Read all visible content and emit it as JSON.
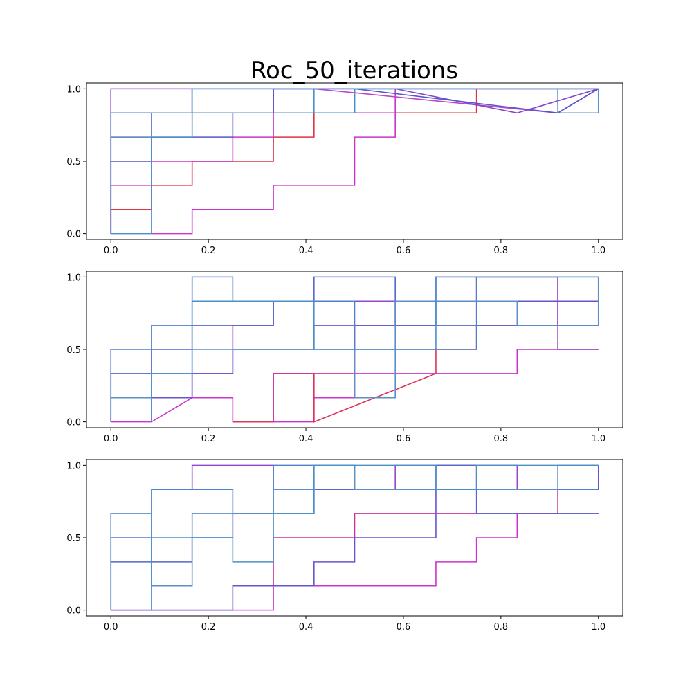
{
  "title": "Roc_50_iterations",
  "chart_data": [
    {
      "type": "line",
      "title": "",
      "xlabel": "",
      "ylabel": "",
      "xlim": [
        -0.05,
        1.05
      ],
      "ylim": [
        -0.04,
        1.04
      ],
      "xticks": [
        0.0,
        0.2,
        0.4,
        0.6,
        0.8,
        1.0
      ],
      "xtick_labels": [
        "0.0",
        "0.2",
        "0.4",
        "0.6",
        "0.8",
        "1.0"
      ],
      "yticks": [
        0.0,
        0.5,
        1.0
      ],
      "ytick_labels": [
        "0.0",
        "0.5",
        "1.0"
      ],
      "grid": false,
      "series": [
        {
          "color": "#dd3344",
          "x": [
            0,
            0,
            0.0833,
            0.0833,
            0.1667,
            0.1667,
            0.3333,
            0.3333,
            0.4167,
            0.4167,
            0.5,
            0.5,
            0.75,
            0.75,
            1.0
          ],
          "y": [
            0,
            0.1667,
            0.1667,
            0.3333,
            0.3333,
            0.5,
            0.5,
            0.6667,
            0.6667,
            0.8333,
            0.8333,
            0.8333,
            0.8333,
            1.0,
            1.0
          ]
        },
        {
          "color": "#cc33cc",
          "x": [
            0,
            0,
            0.0833,
            0.0833,
            0.25,
            0.25,
            0.3333,
            0.3333,
            0.5833,
            0.5833,
            0.75,
            0.75,
            1.0
          ],
          "y": [
            0,
            0.3333,
            0.3333,
            0.5,
            0.5,
            0.6667,
            0.6667,
            0.8333,
            0.8333,
            1.0,
            1.0,
            1.0,
            1.0
          ]
        },
        {
          "color": "#bb44cc",
          "x": [
            0,
            0,
            0.0833,
            0.0833,
            0.1667,
            0.1667,
            0.3333,
            0.3333,
            0.4167,
            0.4167,
            0.9167,
            1.0
          ],
          "y": [
            0,
            0.6667,
            0.6667,
            0.8333,
            0.8333,
            0.8333,
            0.8333,
            1.0,
            1.0,
            1.0,
            0.8333,
            1.0
          ]
        },
        {
          "color": "#8844cc",
          "x": [
            0,
            0,
            0.1667,
            0.1667,
            0.25,
            0.25,
            0.3333,
            0.3333,
            0.5833,
            0.5833,
            0.8333,
            1.0
          ],
          "y": [
            0,
            1.0,
            1.0,
            0.8333,
            0.8333,
            0.8333,
            0.8333,
            1.0,
            1.0,
            1.0,
            0.8333,
            1.0
          ]
        },
        {
          "color": "#5555cc",
          "x": [
            0,
            0,
            0.0833,
            0.0833,
            0.25,
            0.25,
            0.3333,
            0.3333,
            0.5,
            0.5,
            0.9167,
            1.0
          ],
          "y": [
            0,
            0.5,
            0.5,
            0.6667,
            0.6667,
            0.8333,
            0.8333,
            1.0,
            1.0,
            1.0,
            0.8333,
            1.0
          ]
        },
        {
          "color": "#4f7fcc",
          "x": [
            0,
            0,
            0.0833,
            0.0833,
            0.1667,
            0.1667,
            0.3333,
            0.3333,
            0.5833,
            0.5833,
            1.0
          ],
          "y": [
            0,
            0.8333,
            0.8333,
            0.8333,
            0.8333,
            1.0,
            1.0,
            1.0,
            1.0,
            1.0,
            1.0
          ]
        },
        {
          "color": "#5b8fc7",
          "x": [
            0,
            0,
            0.0833,
            0.0833,
            0.1667,
            0.1667,
            0.5,
            0.5,
            0.9167,
            0.9167,
            1.0,
            1.0
          ],
          "y": [
            0,
            0.6667,
            0.6667,
            0.8333,
            0.8333,
            0.8333,
            0.8333,
            1.0,
            1.0,
            0.8333,
            0.8333,
            1.0
          ]
        },
        {
          "color": "#4a90c8",
          "x": [
            0,
            0.0833,
            0.0833,
            0.0833,
            0.0833,
            0.1667,
            0.1667,
            0.4167,
            0.4167,
            0.5,
            0.5,
            1.0
          ],
          "y": [
            0,
            0,
            0.3333,
            0.3333,
            0.6667,
            0.6667,
            1.0,
            1.0,
            0.8333,
            0.8333,
            1.0,
            1.0
          ]
        },
        {
          "color": "#cc33cc",
          "x": [
            0.0833,
            0.1667,
            0.1667,
            0.3333,
            0.3333,
            0.5,
            0.5,
            0.5833,
            0.5833
          ],
          "y": [
            0,
            0,
            0.1667,
            0.1667,
            0.3333,
            0.3333,
            0.6667,
            0.6667,
            0.8333
          ]
        }
      ]
    },
    {
      "type": "line",
      "title": "",
      "xlabel": "",
      "ylabel": "",
      "xlim": [
        -0.05,
        1.05
      ],
      "ylim": [
        -0.04,
        1.04
      ],
      "xticks": [
        0.0,
        0.2,
        0.4,
        0.6,
        0.8,
        1.0
      ],
      "xtick_labels": [
        "0.0",
        "0.2",
        "0.4",
        "0.6",
        "0.8",
        "1.0"
      ],
      "yticks": [
        0.0,
        0.5,
        1.0
      ],
      "ytick_labels": [
        "0.0",
        "0.5",
        "1.0"
      ],
      "grid": false,
      "series": [
        {
          "color": "#cc33cc",
          "x": [
            0,
            0.0833,
            0.1667,
            0.25,
            0.25,
            0.4167,
            0.4167,
            0.5,
            0.5,
            0.8333,
            0.8333,
            1.0
          ],
          "y": [
            0,
            0,
            0.1667,
            0.1667,
            0,
            0,
            0.1667,
            0.1667,
            0.3333,
            0.3333,
            0.5,
            0.5
          ]
        },
        {
          "color": "#dd3355",
          "x": [
            0.25,
            0.3333,
            0.3333,
            0.4167,
            0.4167,
            0.4167,
            0.6667,
            0.6667,
            0.75,
            0.75,
            0.8333,
            0.8333,
            1.0,
            1.0
          ],
          "y": [
            0,
            0,
            0.3333,
            0.3333,
            0.1667,
            0,
            0.3333,
            0.5,
            0.5,
            0.6667,
            0.6667,
            0.6667,
            0.6667,
            1.0
          ]
        },
        {
          "color": "#cc3399",
          "x": [
            0.3333,
            0.3333,
            0.5,
            0.5,
            0.5833,
            0.5833,
            0.75,
            0.75,
            0.9167,
            0.9167,
            1.0
          ],
          "y": [
            0,
            0.3333,
            0.3333,
            0.6667,
            0.6667,
            0.8333,
            0.8333,
            1.0,
            1.0,
            0.6667,
            0.6667
          ]
        },
        {
          "color": "#9944cc",
          "x": [
            0.0833,
            0.0833,
            0.1667,
            0.1667,
            0.25,
            0.25,
            0.3333,
            0.3333,
            0.6667,
            0.6667,
            0.9167,
            0.9167,
            1.0
          ],
          "y": [
            0,
            0.1667,
            0.1667,
            0.3333,
            0.3333,
            0.6667,
            0.6667,
            0.8333,
            0.8333,
            1.0,
            1.0,
            0.5,
            0.5
          ]
        },
        {
          "color": "#6655cc",
          "x": [
            0,
            0,
            0.1667,
            0.1667,
            0.25,
            0.25,
            0.4167,
            0.4167,
            0.6667,
            0.6667,
            1.0
          ],
          "y": [
            0,
            0.1667,
            0.1667,
            0.3333,
            0.3333,
            0.5,
            0.5,
            0.6667,
            0.6667,
            0.8333,
            0.8333
          ]
        },
        {
          "color": "#5566cc",
          "x": [
            0,
            0,
            0.0833,
            0.0833,
            0.1667,
            0.1667,
            0.3333,
            0.3333,
            0.4167,
            0.4167,
            0.5833,
            0.5833,
            1.0
          ],
          "y": [
            0,
            0.3333,
            0.3333,
            0.5,
            0.5,
            0.6667,
            0.6667,
            0.8333,
            0.8333,
            1.0,
            1.0,
            0.6667,
            0.6667
          ]
        },
        {
          "color": "#4f7fcc",
          "x": [
            0,
            0,
            0.0833,
            0.0833,
            0.1667,
            0.1667,
            0.25,
            0.25,
            0.5,
            0.5,
            0.75,
            0.75,
            1.0
          ],
          "y": [
            0,
            0.5,
            0.5,
            0.6667,
            0.6667,
            1.0,
            1.0,
            0.8333,
            0.8333,
            0.5,
            0.5,
            1.0,
            1.0
          ]
        },
        {
          "color": "#5b8fc7",
          "x": [
            0,
            0.0833,
            0.0833,
            0.1667,
            0.1667,
            0.5,
            0.5,
            0.5833,
            0.5833,
            0.8333,
            0.8333,
            1.0,
            1.0
          ],
          "y": [
            0.1667,
            0.1667,
            0.3333,
            0.3333,
            0.5,
            0.5,
            0.1667,
            0.1667,
            0.8333,
            0.8333,
            0.6667,
            0.6667,
            1.0
          ]
        },
        {
          "color": "#4a90c8",
          "x": [
            0.0833,
            0.0833,
            0.1667,
            0.1667,
            0.4167,
            0.4167,
            0.6667,
            0.6667,
            1.0
          ],
          "y": [
            0,
            0.3333,
            0.3333,
            0.8333,
            0.8333,
            0.5,
            0.5,
            1.0,
            1.0
          ]
        }
      ]
    },
    {
      "type": "line",
      "title": "",
      "xlabel": "",
      "ylabel": "",
      "xlim": [
        -0.05,
        1.05
      ],
      "ylim": [
        -0.04,
        1.04
      ],
      "xticks": [
        0.0,
        0.2,
        0.4,
        0.6,
        0.8,
        1.0
      ],
      "xtick_labels": [
        "0.0",
        "0.2",
        "0.4",
        "0.6",
        "0.8",
        "1.0"
      ],
      "yticks": [
        0.0,
        0.5,
        1.0
      ],
      "ytick_labels": [
        "0.0",
        "0.5",
        "1.0"
      ],
      "grid": false,
      "series": [
        {
          "color": "#cc33cc",
          "x": [
            0,
            0.3333,
            0.3333,
            0.5833,
            0.5833,
            0.6667,
            0.6667,
            0.75,
            0.75,
            0.8333,
            0.8333,
            1.0
          ],
          "y": [
            0,
            0,
            0.1667,
            0.1667,
            0.1667,
            0.1667,
            0.3333,
            0.3333,
            0.5,
            0.5,
            0.6667,
            0.6667
          ]
        },
        {
          "color": "#cc3399",
          "x": [
            0.3333,
            0.3333,
            0.5,
            0.5,
            0.9167,
            0.9167,
            1.0
          ],
          "y": [
            0.1667,
            0.5,
            0.5,
            0.6667,
            0.6667,
            0.8333,
            0.8333
          ]
        },
        {
          "color": "#9944cc",
          "x": [
            0.1667,
            0.1667,
            0.3333,
            0.3333,
            0.5833,
            0.5833,
            0.8333,
            0.8333,
            1.0
          ],
          "y": [
            0.8333,
            1.0,
            1.0,
            0.8333,
            0.8333,
            1.0,
            1.0,
            0.8333,
            0.8333
          ]
        },
        {
          "color": "#6655cc",
          "x": [
            0,
            0.25,
            0.25,
            0.4167,
            0.4167,
            0.5,
            0.5,
            0.6667,
            0.6667,
            1.0,
            1.0
          ],
          "y": [
            0,
            0,
            0.1667,
            0.1667,
            0.3333,
            0.3333,
            0.5,
            0.5,
            0.8333,
            0.8333,
            1.0
          ]
        },
        {
          "color": "#5566cc",
          "x": [
            0,
            0,
            0.1667,
            0.1667,
            0.25,
            0.25,
            0.4167,
            0.4167,
            0.6667,
            0.6667,
            0.75,
            0.75,
            1.0
          ],
          "y": [
            0,
            0.3333,
            0.3333,
            0.5,
            0.5,
            0.6667,
            0.6667,
            0.8333,
            0.8333,
            1.0,
            1.0,
            0.6667,
            0.6667
          ]
        },
        {
          "color": "#4f7fcc",
          "x": [
            0,
            0,
            0.0833,
            0.0833,
            0.25,
            0.25,
            0.3333,
            0.3333,
            0.5,
            0.5,
            1.0
          ],
          "y": [
            0,
            0.5,
            0.5,
            0.8333,
            0.8333,
            0.6667,
            0.6667,
            1.0,
            1.0,
            0.8333,
            0.8333
          ]
        },
        {
          "color": "#5b8fc7",
          "x": [
            0,
            0,
            0.0833,
            0.0833,
            0.1667,
            0.1667,
            0.3333,
            0.3333,
            0.4167,
            0.4167,
            0.5,
            0.5,
            0.9167,
            0.9167,
            1.0
          ],
          "y": [
            0,
            0.6667,
            0.6667,
            0.1667,
            0.1667,
            0.6667,
            0.6667,
            0.8333,
            0.8333,
            1.0,
            1.0,
            0.8333,
            0.8333,
            1.0,
            1.0
          ]
        },
        {
          "color": "#4a90c8",
          "x": [
            0.0833,
            0.0833,
            0.25,
            0.25,
            0.3333,
            0.3333,
            0.4167,
            0.4167,
            0.6667,
            0.6667,
            0.75,
            0.75,
            1.0
          ],
          "y": [
            0,
            0.5,
            0.5,
            0.3333,
            0.3333,
            0.6667,
            0.6667,
            1.0,
            1.0,
            0.8333,
            0.8333,
            1.0,
            1.0
          ]
        }
      ]
    }
  ]
}
